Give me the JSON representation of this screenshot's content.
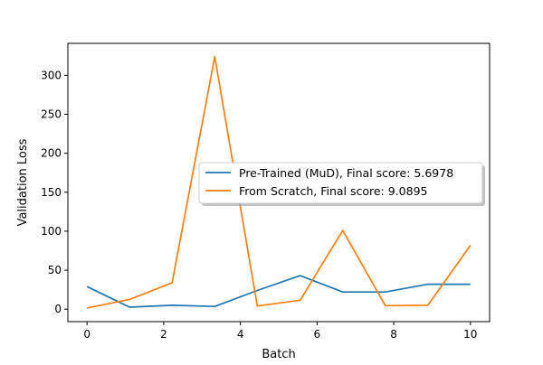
{
  "chart_data": {
    "type": "line",
    "xlabel": "Batch",
    "ylabel": "Validation Loss",
    "xlim": [
      -0.5,
      10.5
    ],
    "ylim": [
      -16,
      341
    ],
    "xticks": [
      0,
      2,
      4,
      6,
      8,
      10
    ],
    "yticks": [
      0,
      50,
      100,
      150,
      200,
      250,
      300
    ],
    "grid": false,
    "legend_position": "center-right",
    "series": [
      {
        "name": "Pre-Trained (MuD), Final score: 5.6978",
        "color": "#1f77b4",
        "x": [
          0,
          1.11,
          2.22,
          3.33,
          4.44,
          5.56,
          6.67,
          7.78,
          8.89,
          10
        ],
        "y": [
          29,
          2.5,
          5,
          3.5,
          24,
          43,
          22,
          22,
          32,
          32
        ]
      },
      {
        "name": "From Scratch, Final score: 9.0895",
        "color": "#ff7f0e",
        "x": [
          0,
          1.11,
          2.22,
          3.33,
          4.44,
          5.56,
          6.67,
          7.78,
          8.89,
          10
        ],
        "y": [
          1.5,
          12.5,
          34,
          324,
          4,
          11.5,
          101,
          4.5,
          5,
          82
        ]
      }
    ]
  }
}
